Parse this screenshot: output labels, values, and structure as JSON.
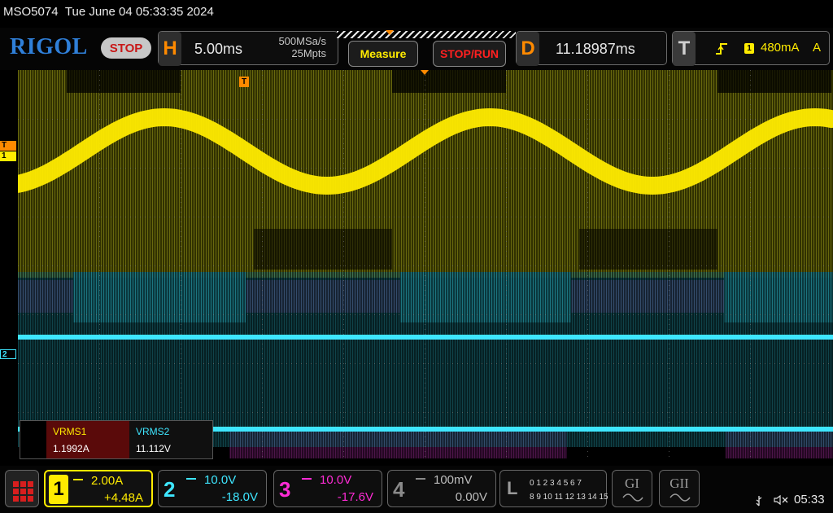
{
  "header": {
    "model": "MSO5074",
    "datetime": "Tue June 04 05:33:35 2024"
  },
  "toolbar": {
    "brand": "RIGOL",
    "run_state": "STOP",
    "horizontal": {
      "letter": "H",
      "timebase": "5.00ms",
      "sample_rate": "500MSa/s",
      "memory_depth": "25Mpts"
    },
    "measure_label": "Measure",
    "stoprun_label": "STOP/RUN",
    "delay": {
      "letter": "D",
      "value": "11.18987ms"
    },
    "trigger": {
      "letter": "T",
      "source": "1",
      "level": "480mA",
      "coupling": "A"
    }
  },
  "screen_markers": {
    "trigger_marker": "T",
    "ch1_marker": "1",
    "ch2_marker": "2",
    "trigger_pos_marker": "T"
  },
  "measurements": {
    "items": [
      {
        "label": "VRMS1",
        "value": "1.1992A"
      },
      {
        "label": "VRMS2",
        "value": "11.112V"
      }
    ]
  },
  "channels": [
    {
      "num": "1",
      "scale": "2.00A",
      "offset": "+4.48A",
      "color": "#ffeb00"
    },
    {
      "num": "2",
      "scale": "10.0V",
      "offset": "-18.0V",
      "color": "#3ee6ff"
    },
    {
      "num": "3",
      "scale": "10.0V",
      "offset": "-17.6V",
      "color": "#ff2bd6"
    },
    {
      "num": "4",
      "scale": "100mV",
      "offset": "0.00V",
      "color": "#8a8a8a"
    }
  ],
  "logic": {
    "letter": "L",
    "row1": "0 1 2 3  4 5 6 7",
    "row2": "8 9 10 11 12 13 14 15"
  },
  "generators": [
    {
      "label": "GI"
    },
    {
      "label": "GII"
    }
  ],
  "status": {
    "time": "05:33"
  },
  "icons": {
    "home": "app-menu-icon",
    "usb": "usb-icon",
    "speaker": "speaker-muted-icon",
    "trigger_edge": "rising-edge-icon"
  },
  "colors": {
    "ch1": "#ffeb00",
    "ch2": "#3ee6ff",
    "ch3": "#ff2bd6",
    "accent": "#ff8a00",
    "brand": "#2f7fd8",
    "stop": "#c81818"
  }
}
